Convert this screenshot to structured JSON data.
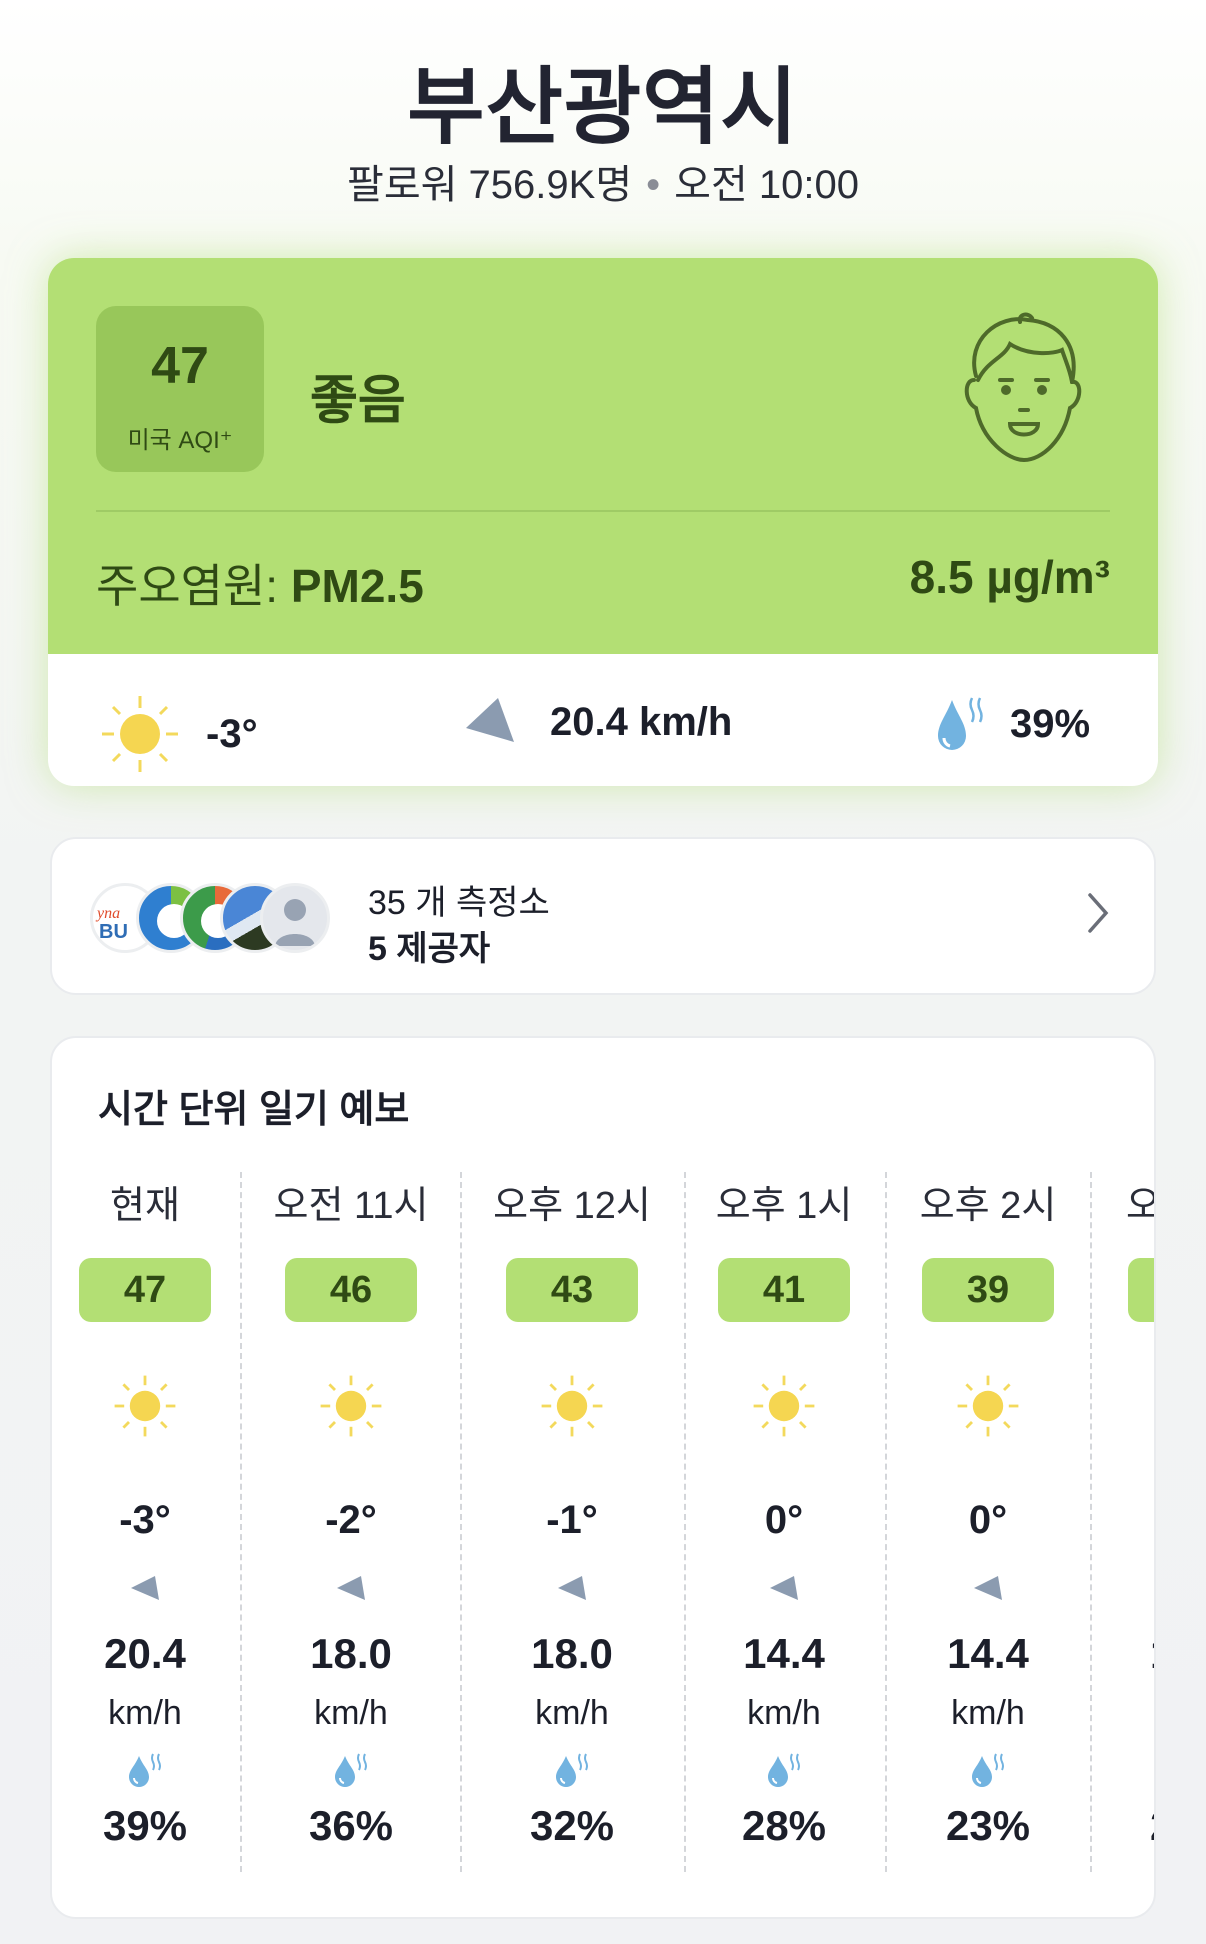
{
  "header": {
    "title": "부산광역시",
    "followers": "팔로워 756.9K명",
    "separator": "•",
    "time": "오전 10:00"
  },
  "aqi": {
    "value": "47",
    "scale": "미국 AQI⁺",
    "status": "좋음",
    "pollutant_label": "주오염원:",
    "pollutant": "PM2.5",
    "concentration": "8.5 µg/m³",
    "color": "#b3df74",
    "face_icon": "happy-face-icon"
  },
  "current_weather": {
    "temperature": "-3°",
    "wind": "20.4 km/h",
    "humidity": "39%",
    "icons": [
      "sun-icon",
      "wind-direction-icon",
      "humidity-drop-icon"
    ]
  },
  "stations": {
    "count_label": "35 개 측정소",
    "providers_label": "5 제공자"
  },
  "forecast": {
    "title": "시간 단위 일기 예보",
    "unit": "km/h",
    "hours": [
      {
        "label": "현재",
        "aqi": "47",
        "temp": "-3°",
        "wind": "20.4",
        "humidity": "39%"
      },
      {
        "label": "오전 11시",
        "aqi": "46",
        "temp": "-2°",
        "wind": "18.0",
        "humidity": "36%"
      },
      {
        "label": "오후 12시",
        "aqi": "43",
        "temp": "-1°",
        "wind": "18.0",
        "humidity": "32%"
      },
      {
        "label": "오후 1시",
        "aqi": "41",
        "temp": "0°",
        "wind": "14.4",
        "humidity": "28%"
      },
      {
        "label": "오후 2시",
        "aqi": "39",
        "temp": "0°",
        "wind": "14.4",
        "humidity": "23%"
      }
    ],
    "partial": {
      "label": "오",
      "wind": "1",
      "humidity": "2"
    }
  }
}
